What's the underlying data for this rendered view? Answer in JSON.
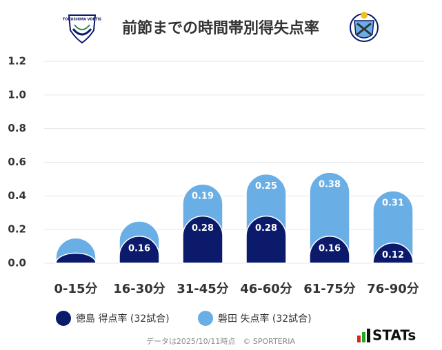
{
  "chart_data": {
    "type": "stacked-bar",
    "title": "前節までの時間帯別得失点率",
    "categories": [
      "0-15分",
      "16-30分",
      "31-45分",
      "46-60分",
      "61-75分",
      "76-90分"
    ],
    "series": [
      {
        "name": "徳島 得点率 (32試合)",
        "color": "#0c1a6b",
        "values": [
          0.06,
          0.16,
          0.28,
          0.28,
          0.16,
          0.12
        ],
        "value_labels": [
          null,
          "0.16",
          "0.28",
          "0.28",
          "0.16",
          "0.12"
        ]
      },
      {
        "name": "磐田 失点率 (32試合)",
        "color": "#6aaee6",
        "values": [
          0.09,
          0.09,
          0.19,
          0.25,
          0.38,
          0.31
        ],
        "value_labels": [
          null,
          null,
          "0.19",
          "0.25",
          "0.38",
          "0.31"
        ]
      }
    ],
    "ylim": [
      0,
      1.2
    ],
    "yticks": [
      {
        "value": 0,
        "label": "0.0"
      },
      0.2,
      0.4,
      0.6,
      0.8,
      {
        "value": 1,
        "label": "1.0"
      },
      1.2
    ],
    "grid": true,
    "footnote": "データは2025/10/11時点　© SPORTERIA",
    "brand": "STATs",
    "logo_left_text": "TOKUSHIMA VORTIS"
  }
}
